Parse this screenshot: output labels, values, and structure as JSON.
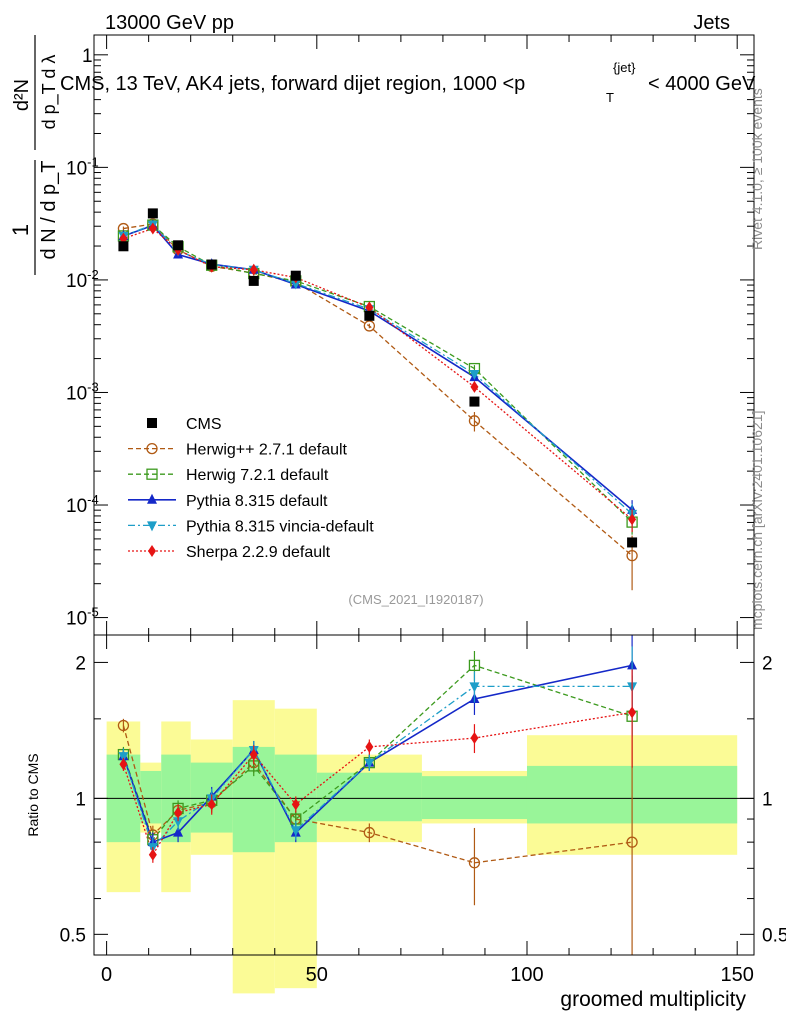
{
  "header": {
    "left": "13000 GeV pp",
    "right": "Jets"
  },
  "side_labels": {
    "rivet": "Rivet 4.1.0, ≥ 100k events",
    "source": "mcplots.cern.ch [arXiv:2401.10621]"
  },
  "analysis_tag": "(CMS_2021_I1920187)",
  "colors": {
    "CMS": "#000000",
    "Herwig++ 2.7.1 default": "#b05a14",
    "Herwig 7.2.1 default": "#3c9a1e",
    "Pythia 8.315 default": "#1428c8",
    "Pythia 8.315 vincia-default": "#1e9ec8",
    "Sherpa 2.2.9 default": "#e61414",
    "band_inner": "#99f599",
    "band_outer": "#fbfb96"
  },
  "chart_data": [
    {
      "type": "scatter",
      "panel": "main",
      "title": "CMS, 13 TeV, AK4 jets, forward dijet region, 1000 <p_T^{jet}< 4000 GeV",
      "title_parts": {
        "main": "CMS, 13 TeV, AK4 jets, forward dijet region, 1000 <p",
        "sub": "T",
        "sup": "{jet}",
        "tail": "< 4000 GeV"
      },
      "ylabel": "1/(dN/dp_T) d²N/(dp_T dλ)",
      "ylabel_parts": {
        "num": "d²N",
        "num_den": "d p_T d λ",
        "den": "d N / d p_T",
        "one": "1"
      },
      "yscale": "log",
      "ylim": [
        7e-06,
        1.5
      ],
      "xlim": [
        -3,
        154
      ],
      "yticks": [
        {
          "value": 1e-05,
          "base": "10",
          "exp": "-5"
        },
        {
          "value": 0.0001,
          "base": "10",
          "exp": "-4"
        },
        {
          "value": 0.001,
          "base": "10",
          "exp": "-3"
        },
        {
          "value": 0.01,
          "base": "10",
          "exp": "-2"
        },
        {
          "value": 0.1,
          "base": "10",
          "exp": "-1"
        },
        {
          "value": 1,
          "base": "1",
          "exp": ""
        }
      ],
      "x": [
        4,
        11,
        17,
        25,
        35,
        45,
        62.5,
        87.5,
        125
      ],
      "series": [
        {
          "name": "CMS",
          "style": "data",
          "marker": "square",
          "values": [
            0.0199,
            0.039,
            0.0203,
            0.0137,
            0.0098,
            0.0109,
            0.0048,
            0.00083,
            4.65e-05
          ]
        },
        {
          "name": "Herwig++ 2.7.1 default",
          "style": "dashed",
          "marker": "circle-open",
          "values": [
            0.0286,
            0.0314,
            0.0185,
            0.0132,
            0.0115,
            0.0095,
            0.0039,
            0.00056,
            3.55e-05
          ],
          "errors": [
            0.0012,
            0.0012,
            0.0008,
            0.0006,
            0.0005,
            0.0004,
            0.00018,
            0.00011,
            1.8e-05
          ]
        },
        {
          "name": "Herwig 7.2.1 default",
          "style": "dashed",
          "marker": "square-open",
          "values": [
            0.0246,
            0.0307,
            0.0197,
            0.0135,
            0.0114,
            0.0098,
            0.0058,
            0.00163,
            7.05e-05
          ],
          "errors": [
            0.001,
            0.0012,
            0.0008,
            0.0006,
            0.0005,
            0.0004,
            0.00024,
            0.00012,
            1.6e-05
          ]
        },
        {
          "name": "Pythia 8.315 default",
          "style": "solid",
          "marker": "triangle-up",
          "values": [
            0.0245,
            0.0305,
            0.0168,
            0.0138,
            0.0123,
            0.0091,
            0.0053,
            0.00137,
            9.05e-05
          ],
          "errors": [
            0.001,
            0.0012,
            0.0007,
            0.0006,
            0.0005,
            0.0004,
            0.00022,
            0.00011,
            2e-05
          ]
        },
        {
          "name": "Pythia 8.315 vincia-default",
          "style": "dashdot",
          "marker": "triangle-down",
          "values": [
            0.0246,
            0.0309,
            0.0182,
            0.0137,
            0.0123,
            0.0093,
            0.0055,
            0.00146,
            8.34e-05
          ],
          "errors": [
            0.001,
            0.0012,
            0.0007,
            0.0006,
            0.0005,
            0.0004,
            0.00022,
            0.00011,
            1.9e-05
          ]
        },
        {
          "name": "Sherpa 2.2.9 default",
          "style": "dotted",
          "marker": "diamond",
          "values": [
            0.0233,
            0.0286,
            0.0185,
            0.0131,
            0.0123,
            0.0105,
            0.0057,
            0.00112,
            7.45e-05
          ],
          "errors": [
            0.0009,
            0.0011,
            0.0007,
            0.0006,
            0.0005,
            0.0004,
            0.00023,
            9e-05,
            1.7e-05
          ]
        }
      ]
    },
    {
      "type": "line",
      "panel": "ratio",
      "ylabel": "Ratio to CMS",
      "xlabel": "groomed multiplicity",
      "yscale": "log",
      "ylim": [
        0.45,
        2.3
      ],
      "xlim": [
        -3,
        154
      ],
      "xticks": [
        0,
        50,
        100,
        150
      ],
      "yticks": [
        {
          "value": 0.5,
          "label": "0.5"
        },
        {
          "value": 1,
          "label": "1"
        },
        {
          "value": 2,
          "label": "2"
        }
      ],
      "bins": [
        {
          "lo": 0,
          "hi": 8,
          "inner": [
            0.8,
            1.25
          ],
          "outer": [
            0.62,
            1.48
          ]
        },
        {
          "lo": 8,
          "hi": 13,
          "inner": [
            0.88,
            1.15
          ],
          "outer": [
            0.84,
            1.2
          ]
        },
        {
          "lo": 13,
          "hi": 20,
          "inner": [
            0.8,
            1.25
          ],
          "outer": [
            0.62,
            1.48
          ]
        },
        {
          "lo": 20,
          "hi": 30,
          "inner": [
            0.84,
            1.2
          ],
          "outer": [
            0.75,
            1.35
          ]
        },
        {
          "lo": 30,
          "hi": 40,
          "inner": [
            0.76,
            1.3
          ],
          "outer": [
            0.37,
            1.65
          ]
        },
        {
          "lo": 40,
          "hi": 50,
          "inner": [
            0.8,
            1.25
          ],
          "outer": [
            0.38,
            1.58
          ]
        },
        {
          "lo": 50,
          "hi": 75,
          "inner": [
            0.89,
            1.14
          ],
          "outer": [
            0.8,
            1.25
          ]
        },
        {
          "lo": 75,
          "hi": 100,
          "inner": [
            0.9,
            1.12
          ],
          "outer": [
            0.88,
            1.15
          ]
        },
        {
          "lo": 100,
          "hi": 150,
          "inner": [
            0.88,
            1.18
          ],
          "outer": [
            0.75,
            1.38
          ]
        }
      ],
      "x": [
        4,
        11,
        17,
        25,
        35,
        45,
        62.5,
        87.5,
        125
      ],
      "series": [
        {
          "name": "Herwig++ 2.7.1 default",
          "values": [
            1.45,
            0.83,
            0.94,
            0.98,
            1.2,
            0.9,
            0.84,
            0.72,
            0.8
          ],
          "errors": [
            0.05,
            0.04,
            0.04,
            0.05,
            0.06,
            0.04,
            0.04,
            0.14,
            0.38
          ]
        },
        {
          "name": "Herwig 7.2.1 default",
          "values": [
            1.25,
            0.81,
            0.95,
            0.99,
            1.18,
            0.9,
            1.2,
            1.97,
            1.52
          ],
          "errors": [
            0.05,
            0.04,
            0.04,
            0.05,
            0.06,
            0.04,
            0.05,
            0.15,
            0.35
          ]
        },
        {
          "name": "Pythia 8.315 default",
          "values": [
            1.24,
            0.8,
            0.84,
            1.01,
            1.28,
            0.84,
            1.2,
            1.66,
            1.97
          ],
          "errors": [
            0.05,
            0.04,
            0.04,
            0.05,
            0.06,
            0.04,
            0.05,
            0.13,
            0.42
          ]
        },
        {
          "name": "Pythia 8.315 vincia-default",
          "values": [
            1.24,
            0.78,
            0.89,
            1.0,
            1.28,
            0.85,
            1.2,
            1.77,
            1.77
          ],
          "errors": [
            0.05,
            0.04,
            0.04,
            0.05,
            0.06,
            0.04,
            0.05,
            0.14,
            0.4
          ]
        },
        {
          "name": "Sherpa 2.2.9 default",
          "values": [
            1.19,
            0.75,
            0.93,
            0.97,
            1.25,
            0.97,
            1.3,
            1.36,
            1.55
          ],
          "errors": [
            0.04,
            0.03,
            0.04,
            0.05,
            0.06,
            0.04,
            0.05,
            0.1,
            0.38
          ]
        }
      ]
    }
  ]
}
